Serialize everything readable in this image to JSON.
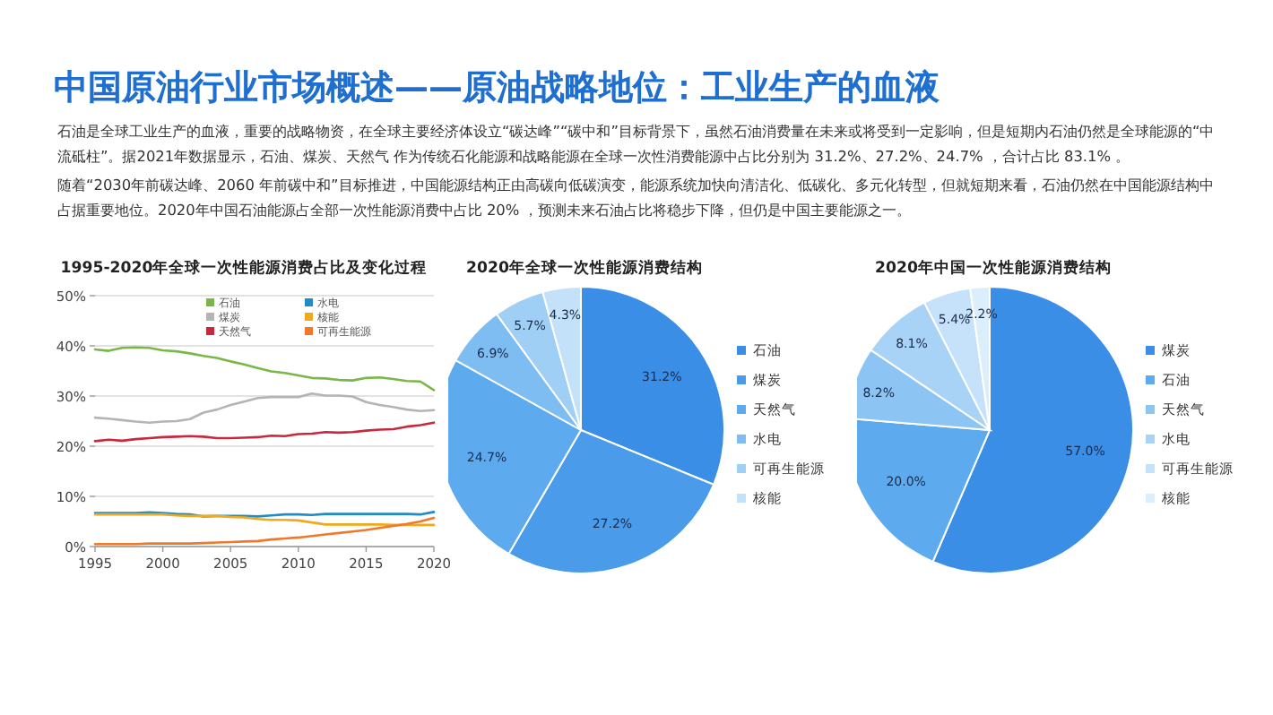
{
  "chart_data": [
    {
      "type": "other",
      "title": "中国原油行业市场概述——原油战略地位：工业生产的血液",
      "annotations": [
        "石油是全球工业生产的血液，重要的战略物资，在全球主要经济体设立“碳达峰”“碳中和”目标背景下，虽然石油消费量在未来或将受到一定影响，但是短期内石油仍然是全球能源的“中流砥柱”。据2021年数据显示，石油、煤炭、天然气 作为传统石化能源和战略能源在全球一次性消费能源中占比分别为 31.2%、27.2%、24.7% ，合计占比 83.1% 。",
        "随着“2030年前碳达峰、2060 年前碳中和”目标推进，中国能源结构正由高碳向低碳演变，能源系统加快向清洁化、低碳化、多元化转型，但就短期来看，石油仍然在中国能源结构中占据重要地位。2020年中国石油能源占全部一次性能源消费中占比 20% ，预测未来石油占比将稳步下降，但仍是中国主要能源之一。"
      ]
    },
    {
      "type": "line",
      "title": "1995-2020年全球一次性能源消费占比及变化过程",
      "x": [
        1995,
        1996,
        1997,
        1998,
        1999,
        2000,
        2001,
        2002,
        2003,
        2004,
        2005,
        2006,
        2007,
        2008,
        2009,
        2010,
        2011,
        2012,
        2013,
        2014,
        2015,
        2016,
        2017,
        2018,
        2019,
        2020
      ],
      "series": [
        {
          "name": "石油",
          "color": "#7ab648",
          "values": [
            39.3,
            39.0,
            39.6,
            39.7,
            39.6,
            39.1,
            38.9,
            38.5,
            38.0,
            37.6,
            36.9,
            36.3,
            35.6,
            34.9,
            34.6,
            34.1,
            33.6,
            33.5,
            33.2,
            33.1,
            33.6,
            33.7,
            33.4,
            33.0,
            32.9,
            31.2
          ]
        },
        {
          "name": "煤炭",
          "color": "#b4b4b4",
          "values": [
            25.7,
            25.5,
            25.2,
            24.9,
            24.7,
            24.9,
            25.0,
            25.4,
            26.7,
            27.3,
            28.2,
            28.9,
            29.6,
            29.8,
            29.8,
            29.8,
            30.5,
            30.1,
            30.1,
            29.9,
            28.8,
            28.2,
            27.8,
            27.3,
            27.0,
            27.2
          ]
        },
        {
          "name": "天然气",
          "color": "#c8283c",
          "values": [
            21.0,
            21.3,
            21.1,
            21.4,
            21.6,
            21.8,
            21.9,
            22.0,
            21.9,
            21.6,
            21.6,
            21.7,
            21.8,
            22.1,
            22.0,
            22.4,
            22.5,
            22.8,
            22.7,
            22.8,
            23.1,
            23.3,
            23.4,
            23.9,
            24.2,
            24.7
          ]
        },
        {
          "name": "水电",
          "color": "#1e8cc8",
          "values": [
            6.7,
            6.7,
            6.7,
            6.7,
            6.8,
            6.7,
            6.5,
            6.4,
            6.0,
            6.1,
            6.1,
            6.1,
            6.0,
            6.2,
            6.4,
            6.4,
            6.3,
            6.5,
            6.5,
            6.5,
            6.5,
            6.5,
            6.5,
            6.5,
            6.4,
            6.9
          ]
        },
        {
          "name": "核能",
          "color": "#f0a81e",
          "values": [
            6.4,
            6.4,
            6.4,
            6.4,
            6.4,
            6.4,
            6.2,
            6.1,
            6.1,
            6.1,
            5.9,
            5.8,
            5.5,
            5.3,
            5.3,
            5.2,
            4.8,
            4.4,
            4.4,
            4.4,
            4.4,
            4.4,
            4.3,
            4.3,
            4.3,
            4.3
          ]
        },
        {
          "name": "可再生能源",
          "color": "#f07828",
          "values": [
            0.5,
            0.5,
            0.5,
            0.5,
            0.6,
            0.6,
            0.6,
            0.6,
            0.7,
            0.8,
            0.9,
            1.0,
            1.1,
            1.4,
            1.6,
            1.8,
            2.1,
            2.4,
            2.7,
            3.0,
            3.3,
            3.7,
            4.1,
            4.5,
            5.0,
            5.7
          ]
        }
      ],
      "xlim": [
        1995,
        2020
      ],
      "xticks": [
        1995,
        2000,
        2005,
        2010,
        2015,
        2020
      ],
      "ylim": [
        0,
        50
      ],
      "yticks": [
        {
          "value": 0,
          "label": "0%"
        },
        {
          "value": 10,
          "label": "10%"
        },
        {
          "value": 20,
          "label": "20%"
        },
        {
          "value": 30,
          "label": "30%"
        },
        {
          "value": 40,
          "label": "40%"
        },
        {
          "value": 50,
          "label": "50%"
        }
      ],
      "grid": "y",
      "legend": "top",
      "marker": "none",
      "line_style": "solid"
    },
    {
      "type": "pie",
      "title": "2020年全球一次性能源消费结构",
      "categories": [
        "石油",
        "煤炭",
        "天然气",
        "水电",
        "可再生能源",
        "核能"
      ],
      "values": [
        31.2,
        27.2,
        24.7,
        6.9,
        5.7,
        4.3
      ],
      "value_labels": [
        "31.2%",
        "27.2%",
        "24.7%",
        "6.9%",
        "5.7%",
        "4.3%"
      ],
      "colors": [
        "#3a8ee6",
        "#4a9bea",
        "#5eaaee",
        "#7ebdf2",
        "#a0cff6",
        "#c4e1fa"
      ],
      "legend": "right"
    },
    {
      "type": "pie",
      "title": "2020年中国一次性能源消费结构",
      "categories": [
        "煤炭",
        "石油",
        "天然气",
        "水电",
        "可再生能源",
        "核能"
      ],
      "values": [
        57.0,
        20.0,
        8.2,
        8.1,
        5.4,
        2.2
      ],
      "value_labels": [
        "57.0%",
        "20.0%",
        "8.2%",
        "8.1%",
        "5.4%",
        "2.2%"
      ],
      "colors": [
        "#3a8ee6",
        "#5eaaee",
        "#8cc4f3",
        "#a8d2f6",
        "#c6e2fa",
        "#dcedfc"
      ],
      "legend": "right"
    }
  ]
}
